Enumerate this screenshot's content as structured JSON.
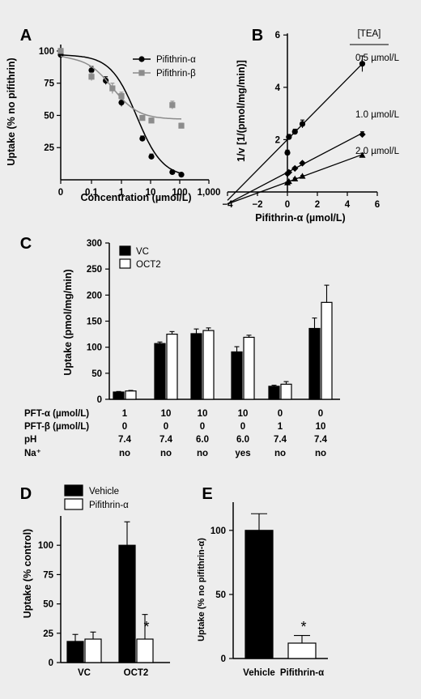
{
  "chart_data": [
    {
      "panel": "A",
      "type": "scatter",
      "xlabel": "Concentration (µmol/L)",
      "ylabel": "Uptake (% no pifithrin)",
      "x_scale": "log",
      "xticks": [
        "0",
        "0.1",
        "1",
        "10",
        "100",
        "1,000"
      ],
      "yticks": [
        "25",
        "50",
        "75",
        "100"
      ],
      "ylim": [
        0,
        105
      ],
      "legend_position": "top-right",
      "series": [
        {
          "name": "Pifithrin-α",
          "marker": "circle",
          "color": "#000000",
          "x": [
            0,
            0.1,
            0.3,
            1,
            5,
            10,
            50,
            100
          ],
          "y": [
            97,
            85,
            77,
            60,
            32,
            18,
            6,
            4
          ],
          "err": [
            3,
            3,
            3,
            3,
            2,
            2,
            1,
            1
          ],
          "fit_bottom": 2,
          "fit_top": 97,
          "fit_ec50": 3.2
        },
        {
          "name": "Pifithrin-β",
          "marker": "square",
          "color": "#8c8c8c",
          "x": [
            0,
            0.1,
            0.5,
            1,
            5,
            10,
            50,
            100
          ],
          "y": [
            100,
            80,
            71,
            65,
            48,
            46,
            58,
            42
          ],
          "err": [
            2,
            3,
            4,
            3,
            2,
            2,
            3,
            2
          ],
          "fit_bottom": 47,
          "fit_top": 96,
          "fit_ec50": 0.5
        }
      ]
    },
    {
      "panel": "B",
      "type": "scatter",
      "xlabel": "Pifithrin-α (µmol/L)",
      "ylabel": "1/v [1/(pmol/mg/min)]",
      "xticks": [
        -4,
        -2,
        0,
        2,
        4,
        6
      ],
      "yticks": [
        2,
        4,
        6
      ],
      "xlim": [
        -4,
        6
      ],
      "ylim": [
        0,
        6
      ],
      "legend_title": "[TEA]",
      "series": [
        {
          "name": "0.5 µmol/L",
          "marker": "circle",
          "x": [
            0,
            0.1,
            0.5,
            1,
            5
          ],
          "y": [
            1.5,
            2.1,
            2.3,
            2.6,
            4.9
          ],
          "err": [
            0.1,
            0.1,
            0.1,
            0.15,
            0.3
          ],
          "slope": 0.58,
          "intercept": 2.0
        },
        {
          "name": "1.0 µmol/L",
          "marker": "diamond",
          "x": [
            0,
            0.1,
            0.5,
            1,
            5
          ],
          "y": [
            0.7,
            0.75,
            0.9,
            1.1,
            2.2
          ],
          "err": [
            0.05,
            0.05,
            0.05,
            0.05,
            0.1
          ],
          "slope": 0.3,
          "intercept": 0.75
        },
        {
          "name": "2.0 µmol/L",
          "marker": "triangle",
          "x": [
            0,
            0.1,
            0.5,
            1,
            5
          ],
          "y": [
            0.35,
            0.4,
            0.5,
            0.6,
            1.4
          ],
          "err": [
            0.03,
            0.03,
            0.03,
            0.03,
            0.08
          ],
          "slope": 0.21,
          "intercept": 0.38
        }
      ]
    },
    {
      "panel": "C",
      "type": "bar",
      "ylabel": "Uptake (pmol/mg/min)",
      "ylim": [
        0,
        300
      ],
      "yticks": [
        0,
        50,
        100,
        150,
        200,
        250,
        300
      ],
      "legend_position": "top-left",
      "series": [
        {
          "name": "VC",
          "color": "#000000",
          "values": [
            14,
            107,
            126,
            91,
            25,
            136
          ],
          "err": [
            1,
            3,
            9,
            10,
            2,
            20
          ]
        },
        {
          "name": "OCT2",
          "color": "#ffffff",
          "values": [
            16,
            125,
            132,
            119,
            29,
            186
          ],
          "err": [
            1,
            5,
            5,
            4,
            5,
            33
          ]
        }
      ],
      "conditions": {
        "labels": [
          "PFT-α (µmol/L)",
          "PFT-β (µmol/L)",
          "pH",
          "Na⁺"
        ],
        "rows": [
          [
            "1",
            "10",
            "10",
            "10",
            "0",
            "0"
          ],
          [
            "0",
            "0",
            "0",
            "0",
            "1",
            "10"
          ],
          [
            "7.4",
            "7.4",
            "6.0",
            "6.0",
            "7.4",
            "7.4"
          ],
          [
            "no",
            "no",
            "no",
            "yes",
            "no",
            "no"
          ]
        ]
      }
    },
    {
      "panel": "D",
      "type": "bar",
      "ylabel": "Uptake (% control)",
      "ylim": [
        0,
        125
      ],
      "yticks": [
        0,
        25,
        50,
        75,
        100
      ],
      "categories": [
        "VC",
        "OCT2"
      ],
      "legend_position": "top",
      "series": [
        {
          "name": "Vehicle",
          "color": "#000000",
          "values": [
            18,
            100
          ],
          "err": [
            6,
            20
          ]
        },
        {
          "name": "Pifithrin-α",
          "color": "#ffffff",
          "values": [
            20,
            20
          ],
          "err": [
            6,
            21
          ]
        }
      ],
      "annotations": [
        {
          "text": "*",
          "category": "OCT2",
          "series": "Pifithrin-α"
        }
      ]
    },
    {
      "panel": "E",
      "type": "bar",
      "ylabel": "Uptake (% no pifithrin-α)",
      "ylim": [
        0,
        122
      ],
      "yticks": [
        0,
        50,
        100
      ],
      "categories": [
        "Vehicle",
        "Pifithrin-α"
      ],
      "colors": [
        "#000000",
        "#ffffff"
      ],
      "values": [
        100,
        12
      ],
      "err": [
        13,
        6
      ],
      "annotations": [
        {
          "text": "*",
          "category": "Pifithrin-α"
        }
      ]
    }
  ]
}
